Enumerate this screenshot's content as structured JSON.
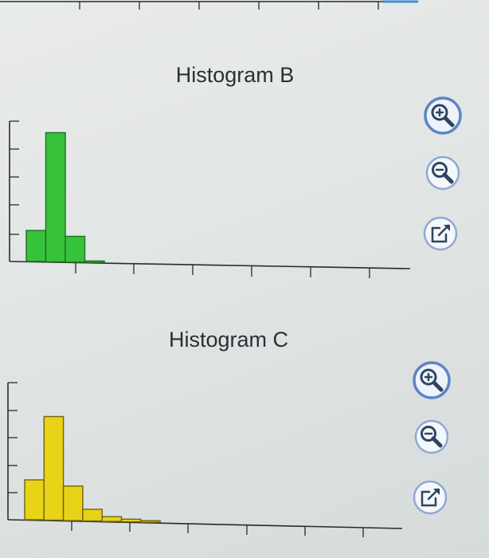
{
  "chart_data": [
    {
      "type": "bar",
      "title": "Histogram B",
      "bar_color": "#36c33b",
      "bins": [
        1,
        2,
        3,
        4
      ],
      "values": [
        6,
        25,
        5,
        0.3
      ],
      "ylim": [
        0,
        27
      ],
      "xlabel": "",
      "ylabel": "",
      "grid": false,
      "legend": "none"
    },
    {
      "type": "bar",
      "title": "Histogram C",
      "bar_color": "#e8d317",
      "bins": [
        1,
        2,
        3,
        4,
        5,
        6,
        7
      ],
      "values": [
        7.5,
        19.5,
        6.5,
        2.2,
        0.9,
        0.5,
        0.3
      ],
      "ylim": [
        0,
        21
      ],
      "xlabel": "",
      "ylabel": "",
      "grid": false,
      "legend": "none"
    }
  ],
  "controls": {
    "icons": [
      "zoom-in-icon",
      "zoom-out-icon",
      "open-external-icon"
    ]
  },
  "colors": {
    "button_ring": "#8fa9d3",
    "icon": "#2f4461"
  }
}
